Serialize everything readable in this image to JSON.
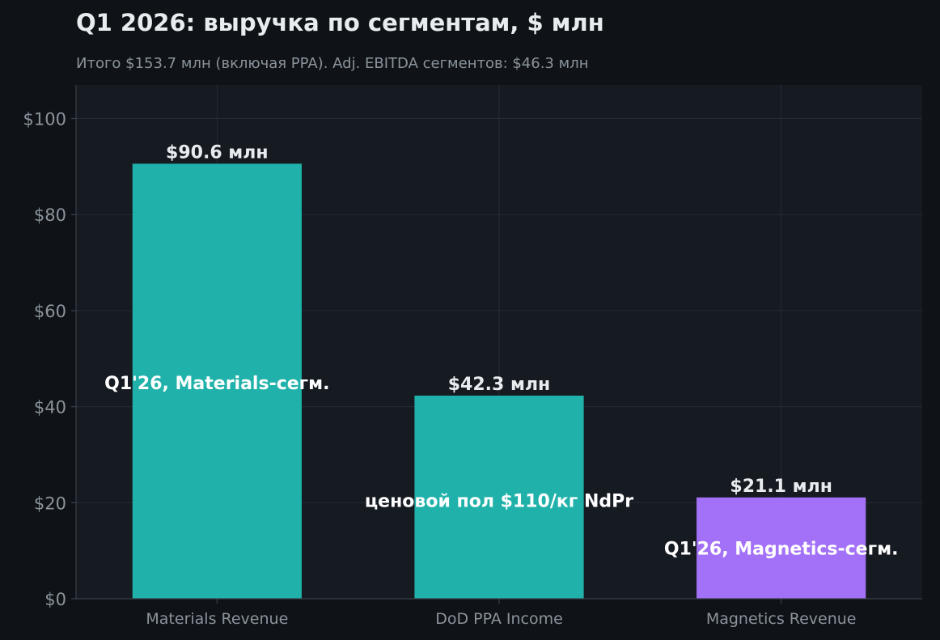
{
  "chart_data": {
    "type": "bar",
    "title": "Q1 2026: выручка по сегментам, $ млн",
    "subtitle": "Итого $153.7 млн (включая PPA). Adj. EBITDA сегментов: $46.3 млн",
    "xlabel": "",
    "ylabel": "",
    "categories": [
      "Materials Revenue",
      "DoD PPA Income",
      "Magnetics Revenue"
    ],
    "values": [
      90.6,
      42.3,
      21.1
    ],
    "value_labels": [
      "$90.6 млн",
      "$42.3 млн",
      "$21.1 млн"
    ],
    "annotations": [
      "Q1'26, Materials-сегм.",
      "ценовой пол $110/кг NdPr",
      "Q1'26, Magnetics-сегм."
    ],
    "annotation_levels": [
      45,
      20.5,
      10.5
    ],
    "bar_colors": [
      "#20b2aa",
      "#20b2aa",
      "#a371f7"
    ],
    "ylim": [
      0,
      107
    ],
    "yticks": [
      0,
      20,
      40,
      60,
      80,
      100
    ],
    "ytick_labels": [
      "$0",
      "$20",
      "$40",
      "$60",
      "$80",
      "$100"
    ],
    "grid": true,
    "colors": {
      "background": "#0f1317",
      "plot_background": "#161a21",
      "grid": "#262c35",
      "axis": "#3a414b"
    }
  }
}
